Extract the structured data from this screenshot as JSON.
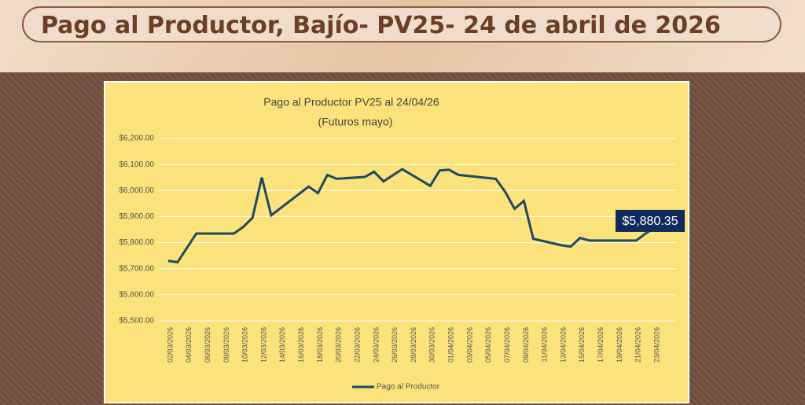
{
  "header": {
    "title": "Pago al Productor, Bajío- PV25- 24 de abril de 2026"
  },
  "chart_data": {
    "type": "line",
    "title": "Pago al Productor PV25 al 24/04/26",
    "subtitle": "(Futuros mayo)",
    "x": [
      "02/03/2026",
      "03/03/2026",
      "05/03/2026",
      "06/03/2026",
      "09/03/2026",
      "10/03/2026",
      "11/03/2026",
      "12/03/2026",
      "13/03/2026",
      "17/03/2026",
      "18/03/2026",
      "19/03/2026",
      "20/03/2026",
      "23/03/2026",
      "24/03/2026",
      "25/03/2026",
      "27/03/2026",
      "30/03/2026",
      "31/03/2026",
      "01/04/2026",
      "02/04/2026",
      "06/04/2026",
      "07/04/2026",
      "08/04/2026",
      "09/04/2026",
      "10/04/2026",
      "13/04/2026",
      "14/04/2026",
      "15/04/2026",
      "16/04/2026",
      "20/04/2026",
      "21/04/2026",
      "22/04/2026",
      "24/04/2026"
    ],
    "series": [
      {
        "name": "Pago al Productor",
        "color": "#1b4a63",
        "values": [
          5730,
          5725,
          5835,
          5835,
          5835,
          5860,
          5895,
          6050,
          5905,
          6015,
          5990,
          6060,
          6045,
          6052,
          6072,
          6035,
          6082,
          6018,
          6077,
          6080,
          6060,
          6045,
          5995,
          5930,
          5960,
          5815,
          5790,
          5785,
          5818,
          5808,
          5808,
          5808,
          5835,
          5880.35
        ],
        "value_labels": [
          null,
          null,
          null,
          null,
          null,
          null,
          null,
          null,
          null,
          null,
          null,
          null,
          null,
          null,
          null,
          null,
          null,
          null,
          null,
          null,
          null,
          null,
          null,
          null,
          null,
          null,
          null,
          null,
          null,
          null,
          null,
          null,
          null,
          "$5,880.35"
        ]
      }
    ],
    "xlim": [
      "02/03/2026",
      "24/04/2026"
    ],
    "xticks": [
      "02/03/2026",
      "04/03/2026",
      "06/03/2026",
      "08/03/2026",
      "10/03/2026",
      "12/03/2026",
      "14/03/2026",
      "16/03/2026",
      "18/03/2026",
      "20/03/2026",
      "22/03/2026",
      "24/03/2026",
      "26/03/2026",
      "28/03/2026",
      "30/03/2026",
      "01/04/2026",
      "03/04/2026",
      "05/04/2026",
      "07/04/2026",
      "09/04/2026",
      "11/04/2026",
      "13/04/2026",
      "15/04/2026",
      "17/04/2026",
      "19/04/2026",
      "21/04/2026",
      "23/04/2026"
    ],
    "ylim": [
      5500,
      6200
    ],
    "yticks": [
      {
        "value": 5500,
        "label": "$5,500.00"
      },
      {
        "value": 5600,
        "label": "$5,600.00"
      },
      {
        "value": 5700,
        "label": "$5,700.00"
      },
      {
        "value": 5800,
        "label": "$5,800.00"
      },
      {
        "value": 5900,
        "label": "$5,900.00"
      },
      {
        "value": 6000,
        "label": "$6,000.00"
      },
      {
        "value": 6100,
        "label": "$6,100.00"
      },
      {
        "value": 6200,
        "label": "$6,200.00"
      }
    ],
    "grid": true,
    "legend": "bottom"
  }
}
